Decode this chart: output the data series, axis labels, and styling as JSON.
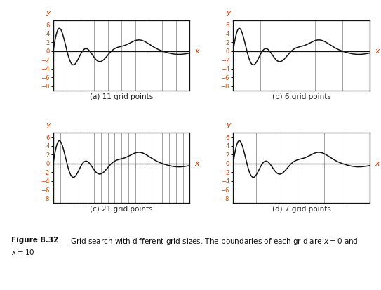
{
  "subplots": [
    {
      "label": "(a) 11 grid points",
      "n_grid": 11
    },
    {
      "label": "(b) 6 grid points",
      "n_grid": 6
    },
    {
      "label": "(c) 21 grid points",
      "n_grid": 21
    },
    {
      "label": "(d) 7 grid points",
      "n_grid": 7
    }
  ],
  "x_range": [
    0,
    10
  ],
  "y_lim": [
    -9,
    7
  ],
  "yticks": [
    -8,
    -6,
    -4,
    -2,
    0,
    2,
    4,
    6
  ],
  "ytick_labels": [
    "-8",
    "-6",
    "-4",
    "-2",
    "0",
    "2",
    "4",
    "6"
  ],
  "line_color": "#111111",
  "grid_color": "#999999",
  "axis_color": "#111111",
  "orange_color": "#cc4400",
  "background": "#ffffff",
  "caption_bold": "Figure 8.32",
  "caption_normal": "  Grid search with different grid sizes. The boundaries of each grid are x = 0 and",
  "caption_line2": "x = 10"
}
